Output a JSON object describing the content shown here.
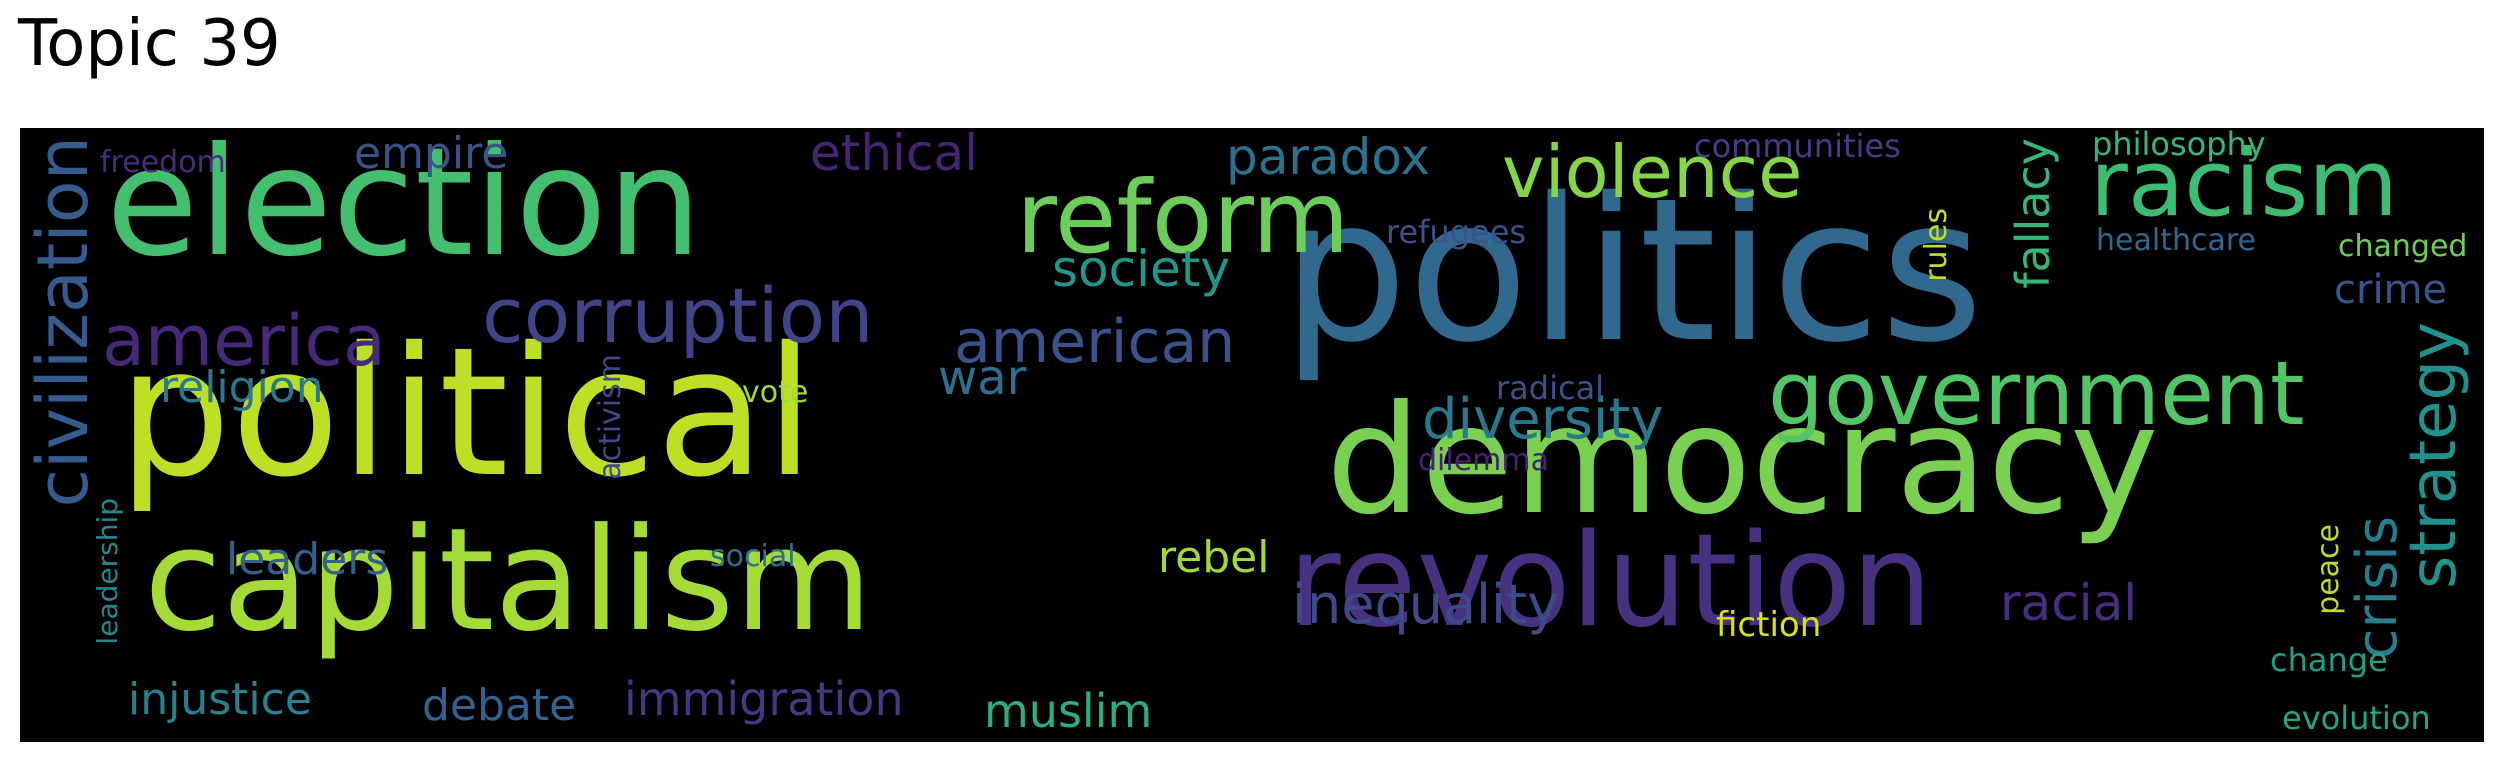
{
  "title": "Topic 39",
  "words": [
    {
      "text": "politics",
      "color": "#31688e"
    },
    {
      "text": "political",
      "color": "#bddf26"
    },
    {
      "text": "election",
      "color": "#44bf70"
    },
    {
      "text": "democracy",
      "color": "#7ad151"
    },
    {
      "text": "capitalism",
      "color": "#a5db36"
    },
    {
      "text": "revolution",
      "color": "#46327e"
    },
    {
      "text": "reform",
      "color": "#6ccd5a"
    },
    {
      "text": "government",
      "color": "#52c569"
    },
    {
      "text": "racism",
      "color": "#3dbc74"
    },
    {
      "text": "violence",
      "color": "#86d549"
    },
    {
      "text": "corruption",
      "color": "#414487"
    },
    {
      "text": "america",
      "color": "#482878"
    },
    {
      "text": "american",
      "color": "#3b528b"
    },
    {
      "text": "civilization",
      "color": "#365c8d"
    },
    {
      "text": "strategy",
      "color": "#21918c"
    },
    {
      "text": "diversity",
      "color": "#2a788e"
    },
    {
      "text": "inequality",
      "color": "#3e4a89"
    },
    {
      "text": "crisis",
      "color": "#277f8e"
    },
    {
      "text": "paradox",
      "color": "#2c728e"
    },
    {
      "text": "society",
      "color": "#1f988b"
    },
    {
      "text": "ethical",
      "color": "#482475"
    },
    {
      "text": "empire",
      "color": "#3b528b"
    },
    {
      "text": "fallacy",
      "color": "#35b779"
    },
    {
      "text": "racial",
      "color": "#472f7d"
    },
    {
      "text": "war",
      "color": "#2e6e8e"
    },
    {
      "text": "religion",
      "color": "#2a788e"
    },
    {
      "text": "immigration",
      "color": "#443983"
    },
    {
      "text": "injustice",
      "color": "#26828e"
    },
    {
      "text": "debate",
      "color": "#33638d"
    },
    {
      "text": "muslim",
      "color": "#2ab07f"
    },
    {
      "text": "rebel",
      "color": "#a0da39"
    },
    {
      "text": "leaders",
      "color": "#355f8d"
    },
    {
      "text": "crime",
      "color": "#39568c"
    },
    {
      "text": "fiction",
      "color": "#d8e219"
    },
    {
      "text": "refugees",
      "color": "#3b528b"
    },
    {
      "text": "communities",
      "color": "#433e85"
    },
    {
      "text": "philosophy",
      "color": "#35b779"
    },
    {
      "text": "healthcare",
      "color": "#31688e"
    },
    {
      "text": "changed",
      "color": "#6ece58"
    },
    {
      "text": "freedom",
      "color": "#472d7b"
    },
    {
      "text": "radical",
      "color": "#3b528b"
    },
    {
      "text": "dilemma",
      "color": "#482173"
    },
    {
      "text": "vote",
      "color": "#a2da37"
    },
    {
      "text": "social",
      "color": "#2c728e"
    },
    {
      "text": "activism",
      "color": "#3e4a89"
    },
    {
      "text": "leadership",
      "color": "#23898e"
    },
    {
      "text": "rules",
      "color": "#c0df25"
    },
    {
      "text": "peace",
      "color": "#b8de29"
    },
    {
      "text": "change",
      "color": "#1f9e89"
    },
    {
      "text": "evolution",
      "color": "#22a884"
    }
  ]
}
